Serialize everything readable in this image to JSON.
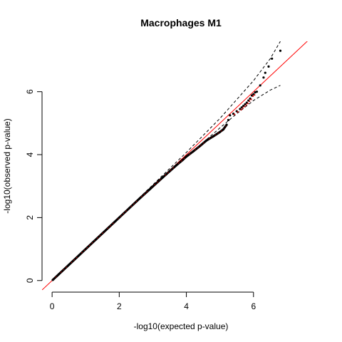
{
  "chart_data": {
    "type": "scatter",
    "title": "Macrophages M1",
    "xlabel": "-log10(expected p-value)",
    "ylabel": "-log10(observed p-value)",
    "xlim": [
      -0.3,
      8.0
    ],
    "ylim": [
      -0.3,
      7.6
    ],
    "xticks": [
      0,
      2,
      4,
      6
    ],
    "yticks": [
      0,
      2,
      4,
      6
    ],
    "reference_line": {
      "slope": 1,
      "intercept": 0,
      "color": "#ff0000"
    },
    "confidence_band": {
      "x": [
        0,
        1,
        2,
        3,
        4,
        5,
        5.5,
        6,
        6.5,
        6.8
      ],
      "upper": [
        0.0,
        1.01,
        2.02,
        3.04,
        4.07,
        5.15,
        5.75,
        6.35,
        7.05,
        7.6
      ],
      "lower": [
        0.0,
        0.99,
        1.98,
        2.96,
        3.92,
        4.85,
        5.3,
        5.72,
        6.05,
        6.2
      ]
    },
    "points": {
      "x": [
        0.02,
        0.2,
        0.5,
        0.8,
        1.0,
        1.3,
        1.6,
        1.9,
        2.0,
        2.3,
        2.6,
        2.9,
        3.0,
        3.3,
        3.5,
        3.7,
        3.9,
        4.0,
        4.2,
        4.4,
        4.6,
        4.8,
        5.0,
        5.1,
        5.2,
        5.25,
        5.3,
        5.4,
        5.5,
        5.6,
        5.65,
        5.7,
        5.75,
        5.8,
        5.85,
        5.9,
        5.95,
        6.0,
        6.05,
        6.1,
        6.2,
        6.3,
        6.35,
        6.45,
        6.55,
        6.8
      ],
      "y": [
        0.02,
        0.2,
        0.5,
        0.8,
        1.0,
        1.3,
        1.6,
        1.9,
        2.0,
        2.3,
        2.6,
        2.89,
        2.99,
        3.28,
        3.47,
        3.66,
        3.84,
        3.94,
        4.1,
        4.27,
        4.45,
        4.58,
        4.72,
        4.8,
        4.95,
        5.1,
        5.25,
        5.3,
        5.38,
        5.45,
        5.5,
        5.55,
        5.6,
        5.65,
        5.72,
        5.78,
        5.88,
        5.92,
        5.98,
        6.0,
        6.2,
        6.45,
        6.6,
        6.8,
        7.05,
        7.3
      ]
    }
  }
}
